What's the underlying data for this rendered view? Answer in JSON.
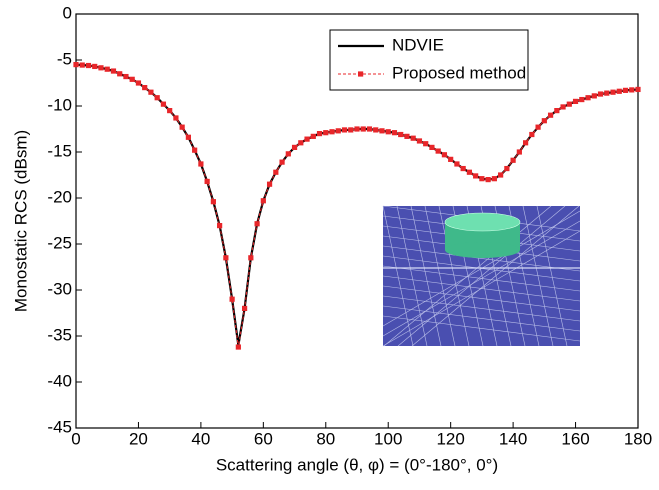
{
  "chart_data": {
    "type": "line",
    "xlabel": "Scattering angle (θ, φ) = (0°-180°, 0°)",
    "ylabel": "Monostatic RCS (dBsm)",
    "x": [
      0,
      2,
      4,
      6,
      8,
      10,
      12,
      14,
      16,
      18,
      20,
      22,
      24,
      26,
      28,
      30,
      32,
      34,
      36,
      38,
      40,
      42,
      44,
      46,
      48,
      50,
      52,
      54,
      56,
      58,
      60,
      62,
      64,
      66,
      68,
      70,
      72,
      74,
      76,
      78,
      80,
      82,
      84,
      86,
      88,
      90,
      92,
      94,
      96,
      98,
      100,
      102,
      104,
      106,
      108,
      110,
      112,
      114,
      116,
      118,
      120,
      122,
      124,
      126,
      128,
      130,
      132,
      134,
      136,
      138,
      140,
      142,
      144,
      146,
      148,
      150,
      152,
      154,
      156,
      158,
      160,
      162,
      164,
      166,
      168,
      170,
      172,
      174,
      176,
      178,
      180
    ],
    "series": [
      {
        "name": "NDVIE",
        "color": "#000000",
        "marker": false,
        "values": [
          -5.5,
          -5.55,
          -5.6,
          -5.7,
          -5.85,
          -6.0,
          -6.2,
          -6.5,
          -6.8,
          -7.1,
          -7.5,
          -8.0,
          -8.5,
          -9.1,
          -9.8,
          -10.5,
          -11.3,
          -12.3,
          -13.4,
          -14.8,
          -16.3,
          -18.2,
          -20.4,
          -23.0,
          -26.5,
          -31.0,
          -36.0,
          -32.0,
          -26.5,
          -22.8,
          -20.3,
          -18.5,
          -17.2,
          -16.1,
          -15.2,
          -14.5,
          -14.0,
          -13.6,
          -13.3,
          -13.0,
          -12.9,
          -12.8,
          -12.7,
          -12.6,
          -12.6,
          -12.5,
          -12.5,
          -12.5,
          -12.6,
          -12.7,
          -12.8,
          -12.9,
          -13.1,
          -13.3,
          -13.5,
          -13.8,
          -14.1,
          -14.5,
          -14.9,
          -15.3,
          -15.8,
          -16.3,
          -16.8,
          -17.2,
          -17.6,
          -17.9,
          -18.0,
          -17.9,
          -17.5,
          -16.8,
          -15.9,
          -15.0,
          -14.0,
          -13.1,
          -12.3,
          -11.6,
          -11.0,
          -10.5,
          -10.1,
          -9.8,
          -9.5,
          -9.3,
          -9.1,
          -8.9,
          -8.7,
          -8.6,
          -8.5,
          -8.4,
          -8.3,
          -8.25,
          -8.2
        ]
      },
      {
        "name": "Proposed method",
        "color": "#e8262a",
        "marker": true,
        "values": [
          -5.5,
          -5.55,
          -5.6,
          -5.7,
          -5.85,
          -6.0,
          -6.2,
          -6.5,
          -6.8,
          -7.1,
          -7.5,
          -8.0,
          -8.5,
          -9.1,
          -9.8,
          -10.5,
          -11.3,
          -12.3,
          -13.4,
          -14.8,
          -16.3,
          -18.2,
          -20.4,
          -23.0,
          -26.5,
          -31.0,
          -36.2,
          -32.0,
          -26.5,
          -22.8,
          -20.3,
          -18.5,
          -17.2,
          -16.1,
          -15.2,
          -14.5,
          -14.0,
          -13.6,
          -13.3,
          -13.0,
          -12.9,
          -12.8,
          -12.7,
          -12.6,
          -12.6,
          -12.5,
          -12.5,
          -12.5,
          -12.6,
          -12.7,
          -12.8,
          -12.9,
          -13.1,
          -13.3,
          -13.5,
          -13.8,
          -14.1,
          -14.5,
          -14.9,
          -15.3,
          -15.8,
          -16.3,
          -16.8,
          -17.2,
          -17.6,
          -17.9,
          -18.0,
          -17.9,
          -17.5,
          -16.8,
          -15.9,
          -15.0,
          -14.0,
          -13.1,
          -12.3,
          -11.6,
          -11.0,
          -10.5,
          -10.1,
          -9.8,
          -9.5,
          -9.3,
          -9.1,
          -8.9,
          -8.7,
          -8.6,
          -8.5,
          -8.4,
          -8.3,
          -8.25,
          -8.2
        ]
      }
    ],
    "xlim": [
      0,
      180
    ],
    "xticks": [
      0,
      20,
      40,
      60,
      80,
      100,
      120,
      140,
      160,
      180
    ],
    "ylim": [
      -45,
      0
    ],
    "yticks": [
      -45,
      -40,
      -35,
      -30,
      -25,
      -20,
      -15,
      -10,
      -5,
      0
    ],
    "grid": false,
    "legend": "upper right"
  }
}
